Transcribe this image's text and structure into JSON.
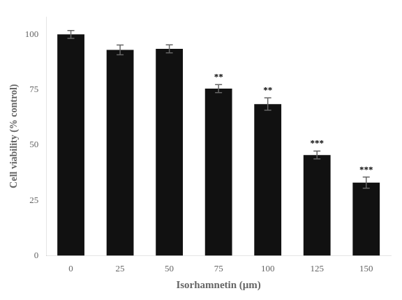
{
  "chart_data": {
    "type": "bar",
    "categories": [
      "0",
      "25",
      "50",
      "75",
      "100",
      "125",
      "150"
    ],
    "values": [
      100.0,
      93.0,
      93.5,
      75.5,
      68.5,
      45.5,
      33.0
    ],
    "errors": [
      1.8,
      2.2,
      1.8,
      1.8,
      2.8,
      1.8,
      2.5
    ],
    "color": "#111111",
    "xlabel": "Isorhamnetin (μm)",
    "ylabel": "Cell viability (% control)",
    "ylim": [
      0,
      108
    ],
    "yticks": [
      0,
      25,
      50,
      75,
      100
    ],
    "grid": false,
    "annotations": [
      {
        "category": "75",
        "text": "**"
      },
      {
        "category": "100",
        "text": "**"
      },
      {
        "category": "125",
        "text": "***"
      },
      {
        "category": "150",
        "text": "***"
      }
    ]
  }
}
